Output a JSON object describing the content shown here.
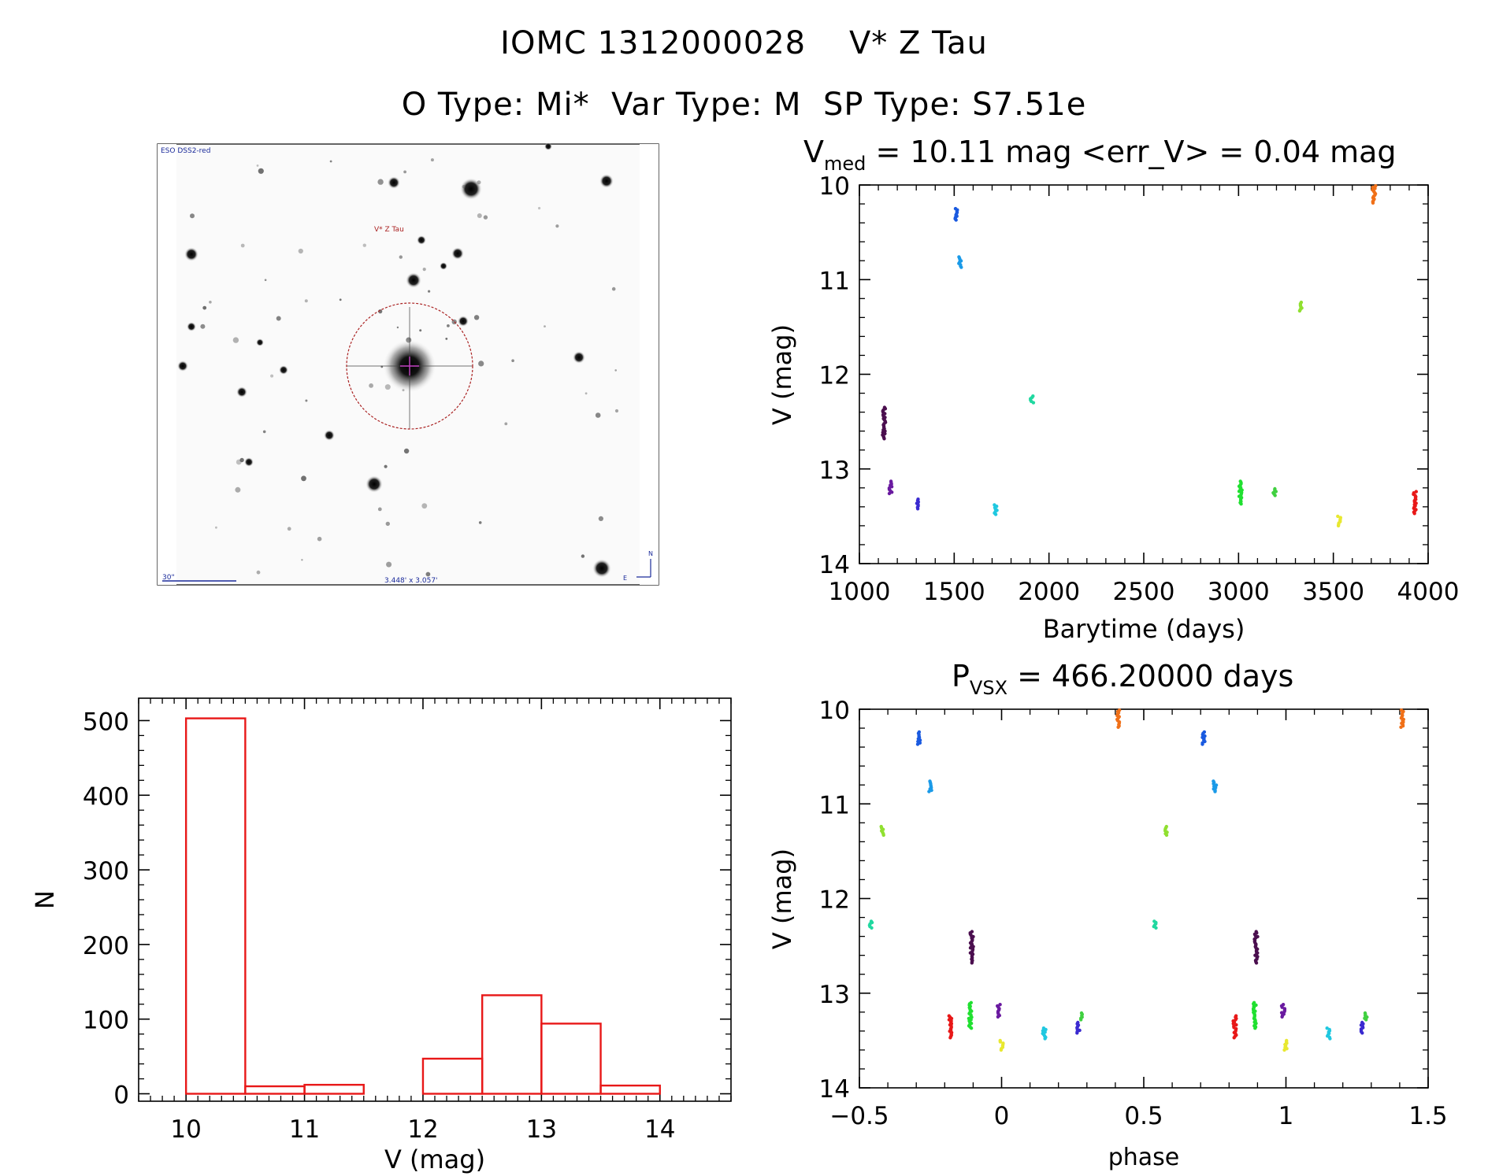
{
  "header": {
    "title_line1": "IOMC 1312000028    V* Z Tau",
    "title_line2": "O Type: Mi*  Var Type: M  SP Type: S7.51e"
  },
  "finder": {
    "survey_label": "ESO DSS2-red",
    "target_label": "V* Z Tau",
    "scale_label": "30\"",
    "fov_label": "3.448' x 3.057'",
    "north_label": "N",
    "east_label": "E",
    "colors": {
      "target": "#aa2222",
      "labels": "#1a2a9a"
    }
  },
  "chart_data": [
    {
      "id": "lightcurve",
      "type": "scatter",
      "title_prefix": "V",
      "title_sub": "med",
      "title_rest": " = 10.11 mag <err_V> = 0.04 mag",
      "xlabel": "Barytime (days)",
      "ylabel": "V (mag)",
      "xlim": [
        1000,
        4000
      ],
      "ylim": [
        14,
        10
      ],
      "y_inverted": true,
      "xticks": [
        1000,
        1500,
        2000,
        2500,
        3000,
        3500,
        4000
      ],
      "yticks": [
        10,
        11,
        12,
        13,
        14
      ],
      "groups": [
        {
          "x": 1130,
          "y_min": 12.35,
          "y_max": 12.68,
          "color": "#4b0f4f"
        },
        {
          "x": 1165,
          "y_min": 13.13,
          "y_max": 13.26,
          "color": "#6a1aa0"
        },
        {
          "x": 1305,
          "y_min": 13.32,
          "y_max": 13.42,
          "color": "#3a2ad0"
        },
        {
          "x": 1510,
          "y_min": 10.25,
          "y_max": 10.37,
          "color": "#1a5ae0"
        },
        {
          "x": 1530,
          "y_min": 10.76,
          "y_max": 10.87,
          "color": "#1a9ae8"
        },
        {
          "x": 1720,
          "y_min": 13.38,
          "y_max": 13.48,
          "color": "#20c8e0"
        },
        {
          "x": 1910,
          "y_min": 12.23,
          "y_max": 12.3,
          "color": "#20d8a0"
        },
        {
          "x": 3010,
          "y_min": 13.13,
          "y_max": 13.37,
          "color": "#20e030"
        },
        {
          "x": 3190,
          "y_min": 13.21,
          "y_max": 13.28,
          "color": "#40d040"
        },
        {
          "x": 3330,
          "y_min": 11.24,
          "y_max": 11.33,
          "color": "#90e030"
        },
        {
          "x": 3530,
          "y_min": 13.5,
          "y_max": 13.6,
          "color": "#e8e830"
        },
        {
          "x": 3715,
          "y_min": 10.01,
          "y_max": 10.19,
          "color": "#f07018"
        },
        {
          "x": 3930,
          "y_min": 13.24,
          "y_max": 13.47,
          "color": "#e81818"
        }
      ]
    },
    {
      "id": "histogram",
      "type": "bar",
      "xlabel": "V (mag)",
      "ylabel": "N",
      "xlim": [
        9.6,
        14.6
      ],
      "ylim": [
        -10,
        530
      ],
      "xticks": [
        10,
        11,
        12,
        13,
        14
      ],
      "yticks": [
        0,
        100,
        200,
        300,
        400,
        500
      ],
      "bin_edges": [
        10.0,
        10.5,
        11.0,
        11.5,
        12.0,
        12.5,
        13.0,
        13.5,
        14.0
      ],
      "counts": [
        503,
        10,
        12,
        0,
        47,
        132,
        94,
        11
      ],
      "color": "#e81818"
    },
    {
      "id": "phased",
      "type": "scatter",
      "title_prefix": "P",
      "title_sub": "VSX",
      "title_rest": " = 466.20000 days",
      "xlabel": "phase",
      "ylabel": "V (mag)",
      "xlim": [
        -0.5,
        1.5
      ],
      "ylim": [
        14,
        10
      ],
      "y_inverted": true,
      "xticks": [
        -0.5,
        0.0,
        0.5,
        1.0,
        1.5
      ],
      "ytick_values": [
        10,
        11,
        12,
        13,
        14
      ],
      "groups": [
        {
          "x": -0.46,
          "y_min": 12.24,
          "y_max": 12.31,
          "color": "#20d8a0"
        },
        {
          "x": -0.42,
          "y_min": 11.24,
          "y_max": 11.33,
          "color": "#90e030"
        },
        {
          "x": -0.29,
          "y_min": 10.24,
          "y_max": 10.37,
          "color": "#1a5ae0"
        },
        {
          "x": -0.25,
          "y_min": 10.76,
          "y_max": 10.87,
          "color": "#1a9ae8"
        },
        {
          "x": -0.18,
          "y_min": 13.24,
          "y_max": 13.47,
          "color": "#e81818"
        },
        {
          "x": -0.11,
          "y_min": 13.1,
          "y_max": 13.37,
          "color": "#20e030"
        },
        {
          "x": -0.105,
          "y_min": 12.35,
          "y_max": 12.68,
          "color": "#4b0f4f"
        },
        {
          "x": -0.01,
          "y_min": 13.12,
          "y_max": 13.25,
          "color": "#6a1aa0"
        },
        {
          "x": 0.0,
          "y_min": 13.5,
          "y_max": 13.6,
          "color": "#e8e830"
        },
        {
          "x": 0.15,
          "y_min": 13.37,
          "y_max": 13.48,
          "color": "#20c8e0"
        },
        {
          "x": 0.27,
          "y_min": 13.31,
          "y_max": 13.42,
          "color": "#3a2ad0"
        },
        {
          "x": 0.28,
          "y_min": 13.21,
          "y_max": 13.28,
          "color": "#40d040"
        },
        {
          "x": 0.41,
          "y_min": 10.01,
          "y_max": 10.19,
          "color": "#f07018"
        },
        {
          "x": 0.54,
          "y_min": 12.24,
          "y_max": 12.31,
          "color": "#20d8a0"
        },
        {
          "x": 0.58,
          "y_min": 11.24,
          "y_max": 11.33,
          "color": "#90e030"
        },
        {
          "x": 0.71,
          "y_min": 10.24,
          "y_max": 10.37,
          "color": "#1a5ae0"
        },
        {
          "x": 0.75,
          "y_min": 10.76,
          "y_max": 10.87,
          "color": "#1a9ae8"
        },
        {
          "x": 0.82,
          "y_min": 13.24,
          "y_max": 13.47,
          "color": "#e81818"
        },
        {
          "x": 0.89,
          "y_min": 13.1,
          "y_max": 13.37,
          "color": "#20e030"
        },
        {
          "x": 0.895,
          "y_min": 12.35,
          "y_max": 12.68,
          "color": "#4b0f4f"
        },
        {
          "x": 0.99,
          "y_min": 13.12,
          "y_max": 13.25,
          "color": "#6a1aa0"
        },
        {
          "x": 1.0,
          "y_min": 13.5,
          "y_max": 13.6,
          "color": "#e8e830"
        },
        {
          "x": 1.15,
          "y_min": 13.37,
          "y_max": 13.48,
          "color": "#20c8e0"
        },
        {
          "x": 1.27,
          "y_min": 13.31,
          "y_max": 13.42,
          "color": "#3a2ad0"
        },
        {
          "x": 1.28,
          "y_min": 13.21,
          "y_max": 13.28,
          "color": "#40d040"
        },
        {
          "x": 1.41,
          "y_min": 10.01,
          "y_max": 10.19,
          "color": "#f07018"
        }
      ]
    }
  ]
}
